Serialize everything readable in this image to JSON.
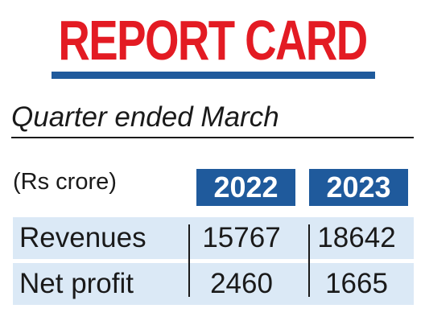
{
  "title": "REPORT CARD",
  "subtitle": "Quarter ended March",
  "unit_label": "(Rs crore)",
  "years": [
    "2022",
    "2023"
  ],
  "rows": [
    {
      "label": "Revenues",
      "values": [
        "15767",
        "18642"
      ]
    },
    {
      "label": "Net profit",
      "values": [
        "2460",
        "1665"
      ]
    }
  ],
  "colors": {
    "title_red": "#e31b23",
    "rule_blue": "#1f5a9c",
    "year_badge": "#1f5a9c",
    "row_band": "#dbe9f6",
    "text": "#1a1a1a"
  }
}
